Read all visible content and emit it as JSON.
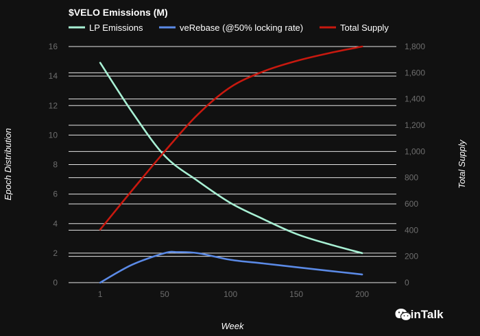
{
  "chart_data": {
    "type": "line",
    "title": "$VELO Emissions (M)",
    "xlabel": "Week",
    "ylabel": "Epoch Distribution",
    "y2label": "Total Supply",
    "xlim": [
      -23,
      226
    ],
    "ylim": [
      0,
      16
    ],
    "y2lim": [
      0,
      1800
    ],
    "x_ticks": [
      1,
      50,
      100,
      150,
      200
    ],
    "y_ticks": [
      0,
      2,
      4,
      6,
      8,
      10,
      12,
      14,
      16
    ],
    "y2_ticks": [
      "0",
      "200",
      "400",
      "600",
      "800",
      "1,000",
      "1,200",
      "1,400",
      "1,600",
      "1,800"
    ],
    "y2_tick_values": [
      0,
      200,
      400,
      600,
      800,
      1000,
      1200,
      1400,
      1600,
      1800
    ],
    "grid": true,
    "legend_position": "top",
    "series": [
      {
        "name": "LP Emissions",
        "axis": "left",
        "color": "#a8f0d4",
        "x": [
          1,
          25,
          50,
          75,
          100,
          125,
          150,
          175,
          200
        ],
        "y": [
          14.9,
          11.6,
          8.6,
          6.9,
          5.4,
          4.3,
          3.3,
          2.6,
          2.0
        ]
      },
      {
        "name": "veRebase (@50% locking rate)",
        "axis": "left",
        "color": "#5b8ae6",
        "x": [
          1,
          25,
          50,
          60,
          75,
          100,
          125,
          150,
          175,
          200
        ],
        "y": [
          0.0,
          1.2,
          2.0,
          2.07,
          2.0,
          1.55,
          1.3,
          1.05,
          0.8,
          0.55
        ]
      },
      {
        "name": "Total Supply",
        "axis": "right",
        "color": "#c8190f",
        "x": [
          1,
          25,
          50,
          75,
          100,
          125,
          150,
          175,
          200
        ],
        "y": [
          405,
          700,
          1000,
          1280,
          1490,
          1610,
          1690,
          1750,
          1800
        ]
      }
    ]
  },
  "watermark": {
    "text": "CoinTalk",
    "icon": "wechat-icon"
  }
}
